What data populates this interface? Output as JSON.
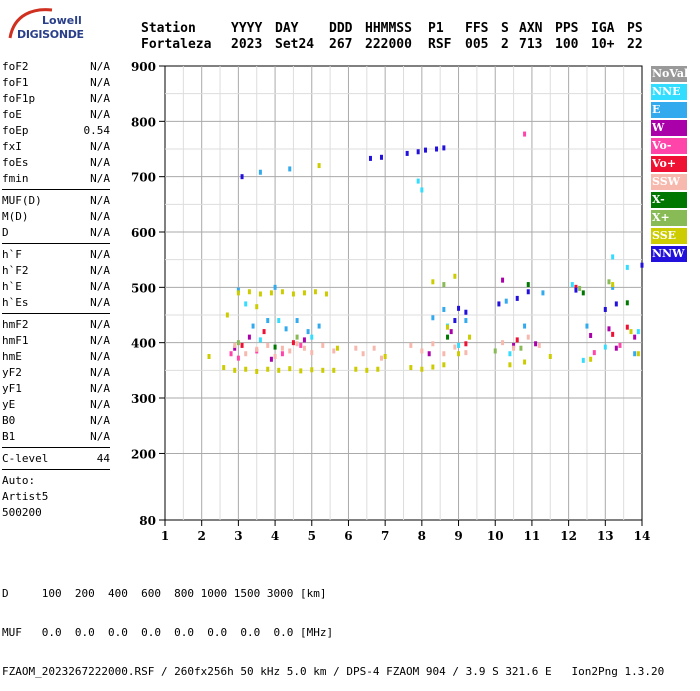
{
  "logo": {
    "top": "Lowell",
    "bottom": "DIGISONDE"
  },
  "header": {
    "labels": [
      "Station",
      "YYYY",
      "DAY",
      "DDD",
      "HHMMSS",
      "P1",
      "FFS",
      "S",
      "AXN",
      "PPS",
      "IGA",
      "PS"
    ],
    "values": [
      "Fortaleza",
      "2023",
      "Set24",
      "267",
      "222000",
      "RSF",
      "005",
      "2",
      "713",
      "100",
      "10+",
      "22"
    ]
  },
  "params": {
    "group1": [
      [
        "foF2",
        "N/A"
      ],
      [
        "foF1",
        "N/A"
      ],
      [
        "foF1p",
        "N/A"
      ],
      [
        "foE",
        "N/A"
      ],
      [
        "foEp",
        "0.54"
      ],
      [
        "fxI",
        "N/A"
      ],
      [
        "foEs",
        "N/A"
      ],
      [
        "fmin",
        "N/A"
      ]
    ],
    "group2": [
      [
        "MUF(D)",
        "N/A"
      ],
      [
        "M(D)",
        "N/A"
      ],
      [
        "D",
        "N/A"
      ]
    ],
    "group3": [
      [
        "h`F",
        "N/A"
      ],
      [
        "h`F2",
        "N/A"
      ],
      [
        "h`E",
        "N/A"
      ],
      [
        "h`Es",
        "N/A"
      ]
    ],
    "group4": [
      [
        "hmF2",
        "N/A"
      ],
      [
        "hmF1",
        "N/A"
      ],
      [
        "hmE",
        "N/A"
      ],
      [
        "yF2",
        "N/A"
      ],
      [
        "yF1",
        "N/A"
      ],
      [
        "yE",
        "N/A"
      ],
      [
        "B0",
        "N/A"
      ],
      [
        "B1",
        "N/A"
      ]
    ],
    "clevel": [
      "C-level",
      "44"
    ],
    "auto": [
      "Auto:",
      "Artist5",
      "500200"
    ]
  },
  "legend": [
    {
      "label": "NoVal",
      "color": "#999999"
    },
    {
      "label": "NNE",
      "color": "#33ddff"
    },
    {
      "label": "E",
      "color": "#33aaee"
    },
    {
      "label": "W",
      "color": "#aa00aa"
    },
    {
      "label": "Vo-",
      "color": "#ff44aa"
    },
    {
      "label": "Vo+",
      "color": "#ee1133"
    },
    {
      "label": "SSW",
      "color": "#f7b9ae"
    },
    {
      "label": "X-",
      "color": "#007700"
    },
    {
      "label": "X+",
      "color": "#88bb55"
    },
    {
      "label": "SSE",
      "color": "#cccc00"
    },
    {
      "label": "NNW",
      "color": "#2211dd"
    }
  ],
  "footer": {
    "line1": "D     100  200  400  600  800 1000 1500 3000 [km]",
    "line2": "MUF   0.0  0.0  0.0  0.0  0.0  0.0  0.0  0.0 [MHz]",
    "line3": "FZAOM_2023267222000.RSF / 260fx256h 50 kHz 5.0 km / DPS-4 FZAOM 904 / 3.9 S 321.6 E   Ion2Png 1.3.20"
  },
  "chart_data": {
    "type": "scatter",
    "title": "",
    "xlabel": "",
    "ylabel": "",
    "xlim": [
      1,
      14
    ],
    "ylim": [
      80,
      900
    ],
    "x_ticks": [
      1,
      2,
      3,
      4,
      5,
      6,
      7,
      8,
      9,
      10,
      11,
      12,
      13,
      14
    ],
    "y_ticks": [
      80,
      200,
      300,
      400,
      500,
      600,
      700,
      800,
      900
    ],
    "grid": true,
    "legend_position": "right",
    "series": [
      {
        "name": "NNE",
        "color": "#33ddff",
        "points": [
          [
            3.2,
            470
          ],
          [
            3.6,
            405
          ],
          [
            4.1,
            440
          ],
          [
            5.0,
            410
          ],
          [
            7.9,
            692
          ],
          [
            8.0,
            676
          ],
          [
            8.7,
            430
          ],
          [
            9.0,
            395
          ],
          [
            10.4,
            380
          ],
          [
            12.1,
            505
          ],
          [
            12.4,
            368
          ],
          [
            13.0,
            392
          ],
          [
            13.2,
            555
          ],
          [
            13.6,
            536
          ],
          [
            13.9,
            420
          ]
        ]
      },
      {
        "name": "E",
        "color": "#33aaee",
        "points": [
          [
            3.0,
            495
          ],
          [
            3.4,
            430
          ],
          [
            3.8,
            440
          ],
          [
            4.0,
            500
          ],
          [
            4.3,
            425
          ],
          [
            4.6,
            440
          ],
          [
            4.9,
            420
          ],
          [
            5.2,
            430
          ],
          [
            3.6,
            708
          ],
          [
            4.4,
            714
          ],
          [
            8.3,
            445
          ],
          [
            8.6,
            460
          ],
          [
            9.2,
            440
          ],
          [
            10.3,
            475
          ],
          [
            10.8,
            430
          ],
          [
            11.3,
            490
          ],
          [
            12.5,
            430
          ],
          [
            13.2,
            500
          ],
          [
            13.8,
            380
          ]
        ]
      },
      {
        "name": "W",
        "color": "#aa00aa",
        "points": [
          [
            2.9,
            390
          ],
          [
            3.3,
            410
          ],
          [
            3.9,
            370
          ],
          [
            4.8,
            405
          ],
          [
            8.2,
            380
          ],
          [
            8.8,
            420
          ],
          [
            10.2,
            513
          ],
          [
            10.5,
            395
          ],
          [
            11.1,
            398
          ],
          [
            12.6,
            413
          ],
          [
            13.1,
            425
          ],
          [
            13.3,
            390
          ],
          [
            13.8,
            410
          ]
        ]
      },
      {
        "name": "Vo-",
        "color": "#ff44aa",
        "points": [
          [
            2.8,
            380
          ],
          [
            3.0,
            372
          ],
          [
            3.5,
            385
          ],
          [
            4.2,
            380
          ],
          [
            4.7,
            395
          ],
          [
            10.8,
            777
          ],
          [
            12.7,
            382
          ],
          [
            13.4,
            395
          ]
        ]
      },
      {
        "name": "Vo+",
        "color": "#ee1133",
        "points": [
          [
            3.1,
            395
          ],
          [
            3.7,
            420
          ],
          [
            4.5,
            400
          ],
          [
            9.2,
            398
          ],
          [
            10.6,
            405
          ],
          [
            12.2,
            500
          ],
          [
            13.2,
            415
          ],
          [
            13.6,
            428
          ]
        ]
      },
      {
        "name": "SSW",
        "color": "#f7b9ae",
        "points": [
          [
            2.9,
            395
          ],
          [
            3.2,
            380
          ],
          [
            3.5,
            388
          ],
          [
            3.8,
            395
          ],
          [
            4.0,
            375
          ],
          [
            4.2,
            390
          ],
          [
            4.4,
            385
          ],
          [
            4.6,
            398
          ],
          [
            4.8,
            390
          ],
          [
            5.0,
            382
          ],
          [
            5.3,
            395
          ],
          [
            5.6,
            385
          ],
          [
            6.2,
            390
          ],
          [
            6.4,
            380
          ],
          [
            6.7,
            390
          ],
          [
            6.9,
            372
          ],
          [
            7.7,
            395
          ],
          [
            8.0,
            385
          ],
          [
            8.3,
            398
          ],
          [
            8.6,
            380
          ],
          [
            8.9,
            392
          ],
          [
            9.2,
            382
          ],
          [
            10.2,
            400
          ],
          [
            10.5,
            390
          ],
          [
            10.9,
            410
          ],
          [
            11.2,
            395
          ]
        ]
      },
      {
        "name": "X-",
        "color": "#007700",
        "points": [
          [
            4.0,
            392
          ],
          [
            8.7,
            410
          ],
          [
            10.9,
            505
          ],
          [
            12.4,
            490
          ],
          [
            13.6,
            472
          ]
        ]
      },
      {
        "name": "X+",
        "color": "#88bb55",
        "points": [
          [
            3.0,
            400
          ],
          [
            4.6,
            410
          ],
          [
            8.6,
            505
          ],
          [
            10.0,
            385
          ],
          [
            10.7,
            390
          ],
          [
            12.3,
            498
          ],
          [
            13.1,
            510
          ]
        ]
      },
      {
        "name": "SSE",
        "color": "#cccc00",
        "points": [
          [
            2.2,
            375
          ],
          [
            2.6,
            355
          ],
          [
            2.9,
            350
          ],
          [
            3.2,
            352
          ],
          [
            3.5,
            348
          ],
          [
            3.8,
            352
          ],
          [
            4.1,
            350
          ],
          [
            4.4,
            353
          ],
          [
            4.7,
            349
          ],
          [
            5.0,
            351
          ],
          [
            5.3,
            350
          ],
          [
            5.6,
            350
          ],
          [
            6.2,
            352
          ],
          [
            6.5,
            350
          ],
          [
            6.8,
            352
          ],
          [
            7.7,
            355
          ],
          [
            8.0,
            352
          ],
          [
            8.3,
            356
          ],
          [
            8.6,
            360
          ],
          [
            9.0,
            380
          ],
          [
            3.0,
            490
          ],
          [
            3.3,
            492
          ],
          [
            3.6,
            488
          ],
          [
            3.9,
            490
          ],
          [
            4.2,
            492
          ],
          [
            4.5,
            488
          ],
          [
            4.8,
            490
          ],
          [
            5.1,
            492
          ],
          [
            5.4,
            488
          ],
          [
            5.2,
            720
          ],
          [
            8.3,
            510
          ],
          [
            8.9,
            520
          ],
          [
            10.4,
            360
          ],
          [
            10.8,
            365
          ],
          [
            12.6,
            370
          ],
          [
            13.2,
            505
          ],
          [
            13.7,
            420
          ],
          [
            2.7,
            450
          ],
          [
            3.5,
            465
          ],
          [
            5.7,
            390
          ],
          [
            7.0,
            375
          ],
          [
            8.7,
            428
          ],
          [
            9.3,
            410
          ],
          [
            11.5,
            375
          ],
          [
            13.9,
            380
          ]
        ]
      },
      {
        "name": "NNW",
        "color": "#2211dd",
        "points": [
          [
            3.1,
            700
          ],
          [
            6.6,
            733
          ],
          [
            6.9,
            735
          ],
          [
            7.6,
            742
          ],
          [
            7.9,
            745
          ],
          [
            8.1,
            748
          ],
          [
            8.4,
            750
          ],
          [
            8.6,
            752
          ],
          [
            9.0,
            462
          ],
          [
            8.9,
            440
          ],
          [
            10.1,
            470
          ],
          [
            10.6,
            480
          ],
          [
            10.9,
            492
          ],
          [
            12.2,
            495
          ],
          [
            13.0,
            460
          ],
          [
            13.3,
            470
          ],
          [
            14.0,
            540
          ],
          [
            9.2,
            455
          ]
        ]
      }
    ]
  }
}
